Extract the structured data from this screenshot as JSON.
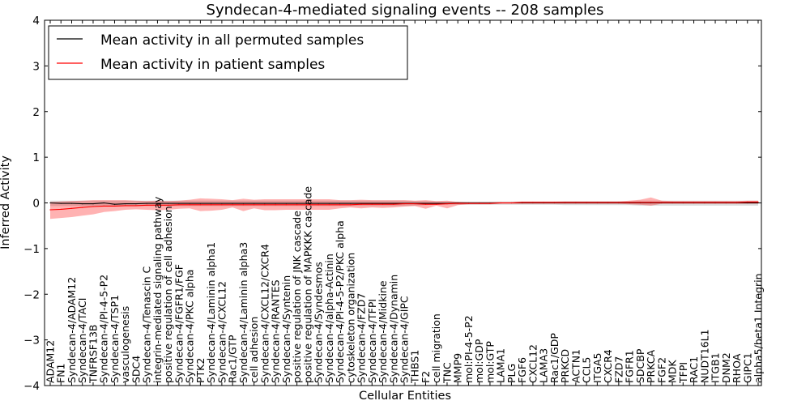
{
  "chart_data": {
    "type": "line",
    "title": "Syndecan-4-mediated signaling events -- 208 samples",
    "xlabel": "Cellular Entities",
    "ylabel": "Inferred Activity",
    "ylim": [
      -4,
      4
    ],
    "yticks": [
      -4,
      -3,
      -2,
      -1,
      0,
      1,
      2,
      3,
      4
    ],
    "grid": false,
    "legend": {
      "placement": "top-left",
      "entries": [
        {
          "name": "Mean activity in all permuted samples",
          "color": "#000000"
        },
        {
          "name": "Mean activity in patient samples",
          "color": "#ff0000"
        }
      ]
    },
    "categories": [
      "ADAM12",
      "FN1",
      "Syndecan-4/ADAM12",
      "Syndecan-4/TACI",
      "TNFRSF13B",
      "Syndecan-4/PI-4-5-P2",
      "Syndecan-4/TSP1",
      "vasculogenesis",
      "SDC4",
      "Syndecan-4/Tenascin C",
      "integrin-mediated signaling pathway",
      "positive regulation of cell adhesion",
      "Syndecan-4/FGFR1/FGF",
      "Syndecan-4/PKC alpha",
      "PTK2",
      "Syndecan-4/Laminin alpha1",
      "Syndecan-4/CXCL12",
      "Rac1/GTP",
      "Syndecan-4/Laminin alpha3",
      "cell adhesion",
      "Syndecan-4/CXCL12/CXCR4",
      "Syndecan-4/RANTES",
      "Syndecan-4/Syntenin",
      "positive regulation of JNK cascade",
      "positive regulation of MAPKKK cascade",
      "Syndecan-4/Syndesmos",
      "Syndecan-4/alpha-Actinin",
      "Syndecan-4/PI-4-5-P2/PKC alpha",
      "cytoskeleton organization",
      "Syndecan-4/FZD7",
      "Syndecan-4/TFPI",
      "Syndecan-4/Midkine",
      "Syndecan-4/Dynamin",
      "Syndecan-4/GIPC",
      "THBS1",
      "F2",
      "cell migration",
      "TNC",
      "MMP9",
      "mol:PI-4-5-P2",
      "mol:GDP",
      "mol:GTP",
      "LAMA1",
      "PLG",
      "FGF6",
      "CXCL12",
      "LAMA3",
      "Rac1/GDP",
      "PRKCD",
      "ACTN1",
      "CCL5",
      "ITGA5",
      "CXCR4",
      "FZD7",
      "FGFR1",
      "SDCBP",
      "PRKCA",
      "FGF2",
      "MDK",
      "TFPI",
      "RAC1",
      "NUDT16L1",
      "ITGB1",
      "DNM2",
      "RHOA",
      "GIPC1",
      "alpha5/beta1 Integrin"
    ],
    "series": [
      {
        "name": "Mean activity in all permuted samples",
        "color": "#000000",
        "values": [
          0.0,
          -0.01,
          -0.01,
          -0.02,
          -0.02,
          0.0,
          -0.03,
          -0.02,
          -0.02,
          -0.01,
          -0.01,
          -0.01,
          -0.01,
          -0.01,
          -0.01,
          -0.01,
          -0.01,
          -0.01,
          -0.01,
          -0.01,
          -0.01,
          -0.01,
          -0.01,
          -0.01,
          -0.01,
          -0.01,
          -0.01,
          -0.01,
          -0.01,
          -0.01,
          -0.01,
          -0.01,
          -0.01,
          -0.01,
          -0.01,
          -0.01,
          -0.01,
          -0.01,
          0.0,
          0.0,
          0.0,
          0.0,
          0.0,
          0.0,
          0.0,
          0.0,
          0.0,
          0.0,
          0.0,
          0.0,
          0.0,
          0.0,
          0.0,
          0.0,
          0.0,
          0.0,
          0.0,
          0.0,
          0.0,
          0.0,
          0.0,
          0.0,
          0.0,
          0.0,
          0.0,
          0.0,
          0.0
        ],
        "band_lower": [
          -0.07,
          -0.07,
          -0.07,
          -0.07,
          -0.07,
          -0.07,
          -0.07,
          -0.07,
          -0.07,
          -0.07,
          -0.07,
          -0.07,
          -0.07,
          -0.07,
          -0.07,
          -0.07,
          -0.07,
          -0.07,
          -0.07,
          -0.07,
          -0.07,
          -0.07,
          -0.07,
          -0.07,
          -0.07,
          -0.07,
          -0.07,
          -0.07,
          -0.07,
          -0.07,
          -0.07,
          -0.07,
          -0.07,
          -0.07,
          -0.06,
          -0.05,
          -0.04,
          -0.04,
          -0.04,
          -0.04,
          -0.04,
          -0.04,
          -0.04,
          -0.04,
          -0.04,
          -0.04,
          -0.04,
          -0.04,
          -0.05,
          -0.05,
          -0.05,
          -0.05,
          -0.05,
          -0.05,
          -0.05,
          -0.06,
          -0.06,
          -0.06,
          -0.06,
          -0.06,
          -0.06,
          -0.06,
          -0.06,
          -0.06,
          -0.06,
          -0.06,
          -0.06
        ],
        "band_upper": [
          0.05,
          0.05,
          0.05,
          0.05,
          0.05,
          0.05,
          0.05,
          0.05,
          0.05,
          0.05,
          0.05,
          0.05,
          0.05,
          0.05,
          0.05,
          0.05,
          0.05,
          0.05,
          0.05,
          0.05,
          0.05,
          0.05,
          0.05,
          0.05,
          0.05,
          0.05,
          0.05,
          0.05,
          0.05,
          0.05,
          0.05,
          0.05,
          0.05,
          0.05,
          0.04,
          0.04,
          0.03,
          0.03,
          0.03,
          0.03,
          0.03,
          0.03,
          0.03,
          0.03,
          0.03,
          0.03,
          0.03,
          0.03,
          0.04,
          0.04,
          0.04,
          0.04,
          0.04,
          0.04,
          0.04,
          0.05,
          0.05,
          0.05,
          0.05,
          0.05,
          0.05,
          0.05,
          0.05,
          0.05,
          0.05,
          0.05,
          0.05
        ]
      },
      {
        "name": "Mean activity in patient samples",
        "color": "#ff0000",
        "values": [
          -0.15,
          -0.14,
          -0.12,
          -0.1,
          -0.08,
          -0.07,
          -0.07,
          -0.06,
          -0.06,
          -0.05,
          -0.05,
          -0.05,
          -0.04,
          -0.04,
          -0.04,
          -0.04,
          -0.04,
          -0.04,
          -0.04,
          -0.04,
          -0.04,
          -0.04,
          -0.04,
          -0.04,
          -0.04,
          -0.04,
          -0.04,
          -0.04,
          -0.04,
          -0.03,
          -0.03,
          -0.03,
          -0.03,
          -0.02,
          -0.02,
          -0.03,
          -0.03,
          -0.02,
          -0.01,
          -0.01,
          -0.01,
          -0.01,
          0.0,
          0.0,
          0.01,
          0.01,
          0.01,
          0.01,
          0.01,
          0.01,
          0.01,
          0.01,
          0.01,
          0.01,
          0.01,
          0.01,
          0.01,
          0.01,
          0.01,
          0.01,
          0.01,
          0.01,
          0.01,
          0.01,
          0.01,
          0.02,
          0.02
        ],
        "band_lower": [
          -0.35,
          -0.33,
          -0.31,
          -0.28,
          -0.25,
          -0.2,
          -0.18,
          -0.15,
          -0.14,
          -0.15,
          -0.16,
          -0.15,
          -0.13,
          -0.12,
          -0.18,
          -0.17,
          -0.15,
          -0.1,
          -0.18,
          -0.12,
          -0.16,
          -0.16,
          -0.15,
          -0.15,
          -0.15,
          -0.15,
          -0.15,
          -0.12,
          -0.1,
          -0.12,
          -0.1,
          -0.11,
          -0.1,
          -0.08,
          -0.07,
          -0.13,
          -0.06,
          -0.12,
          -0.05,
          -0.03,
          -0.03,
          -0.03,
          -0.02,
          -0.02,
          -0.02,
          -0.02,
          -0.02,
          -0.02,
          -0.02,
          -0.02,
          -0.02,
          -0.02,
          -0.02,
          -0.02,
          -0.03,
          -0.04,
          -0.06,
          -0.02,
          -0.02,
          -0.02,
          -0.02,
          -0.02,
          -0.02,
          -0.02,
          -0.02,
          -0.02,
          -0.02
        ],
        "band_upper": [
          0.02,
          0.03,
          0.04,
          0.05,
          0.06,
          0.06,
          0.06,
          0.06,
          0.05,
          0.04,
          0.05,
          0.04,
          0.05,
          0.07,
          0.1,
          0.09,
          0.08,
          0.06,
          0.09,
          0.07,
          0.08,
          0.08,
          0.08,
          0.08,
          0.08,
          0.08,
          0.08,
          0.06,
          0.06,
          0.07,
          0.06,
          0.06,
          0.06,
          0.06,
          0.05,
          0.06,
          0.04,
          0.05,
          0.02,
          0.01,
          0.01,
          0.01,
          0.02,
          0.02,
          0.03,
          0.03,
          0.03,
          0.03,
          0.03,
          0.03,
          0.03,
          0.03,
          0.03,
          0.03,
          0.05,
          0.07,
          0.12,
          0.05,
          0.04,
          0.04,
          0.04,
          0.04,
          0.04,
          0.04,
          0.04,
          0.05,
          0.05
        ]
      }
    ]
  }
}
